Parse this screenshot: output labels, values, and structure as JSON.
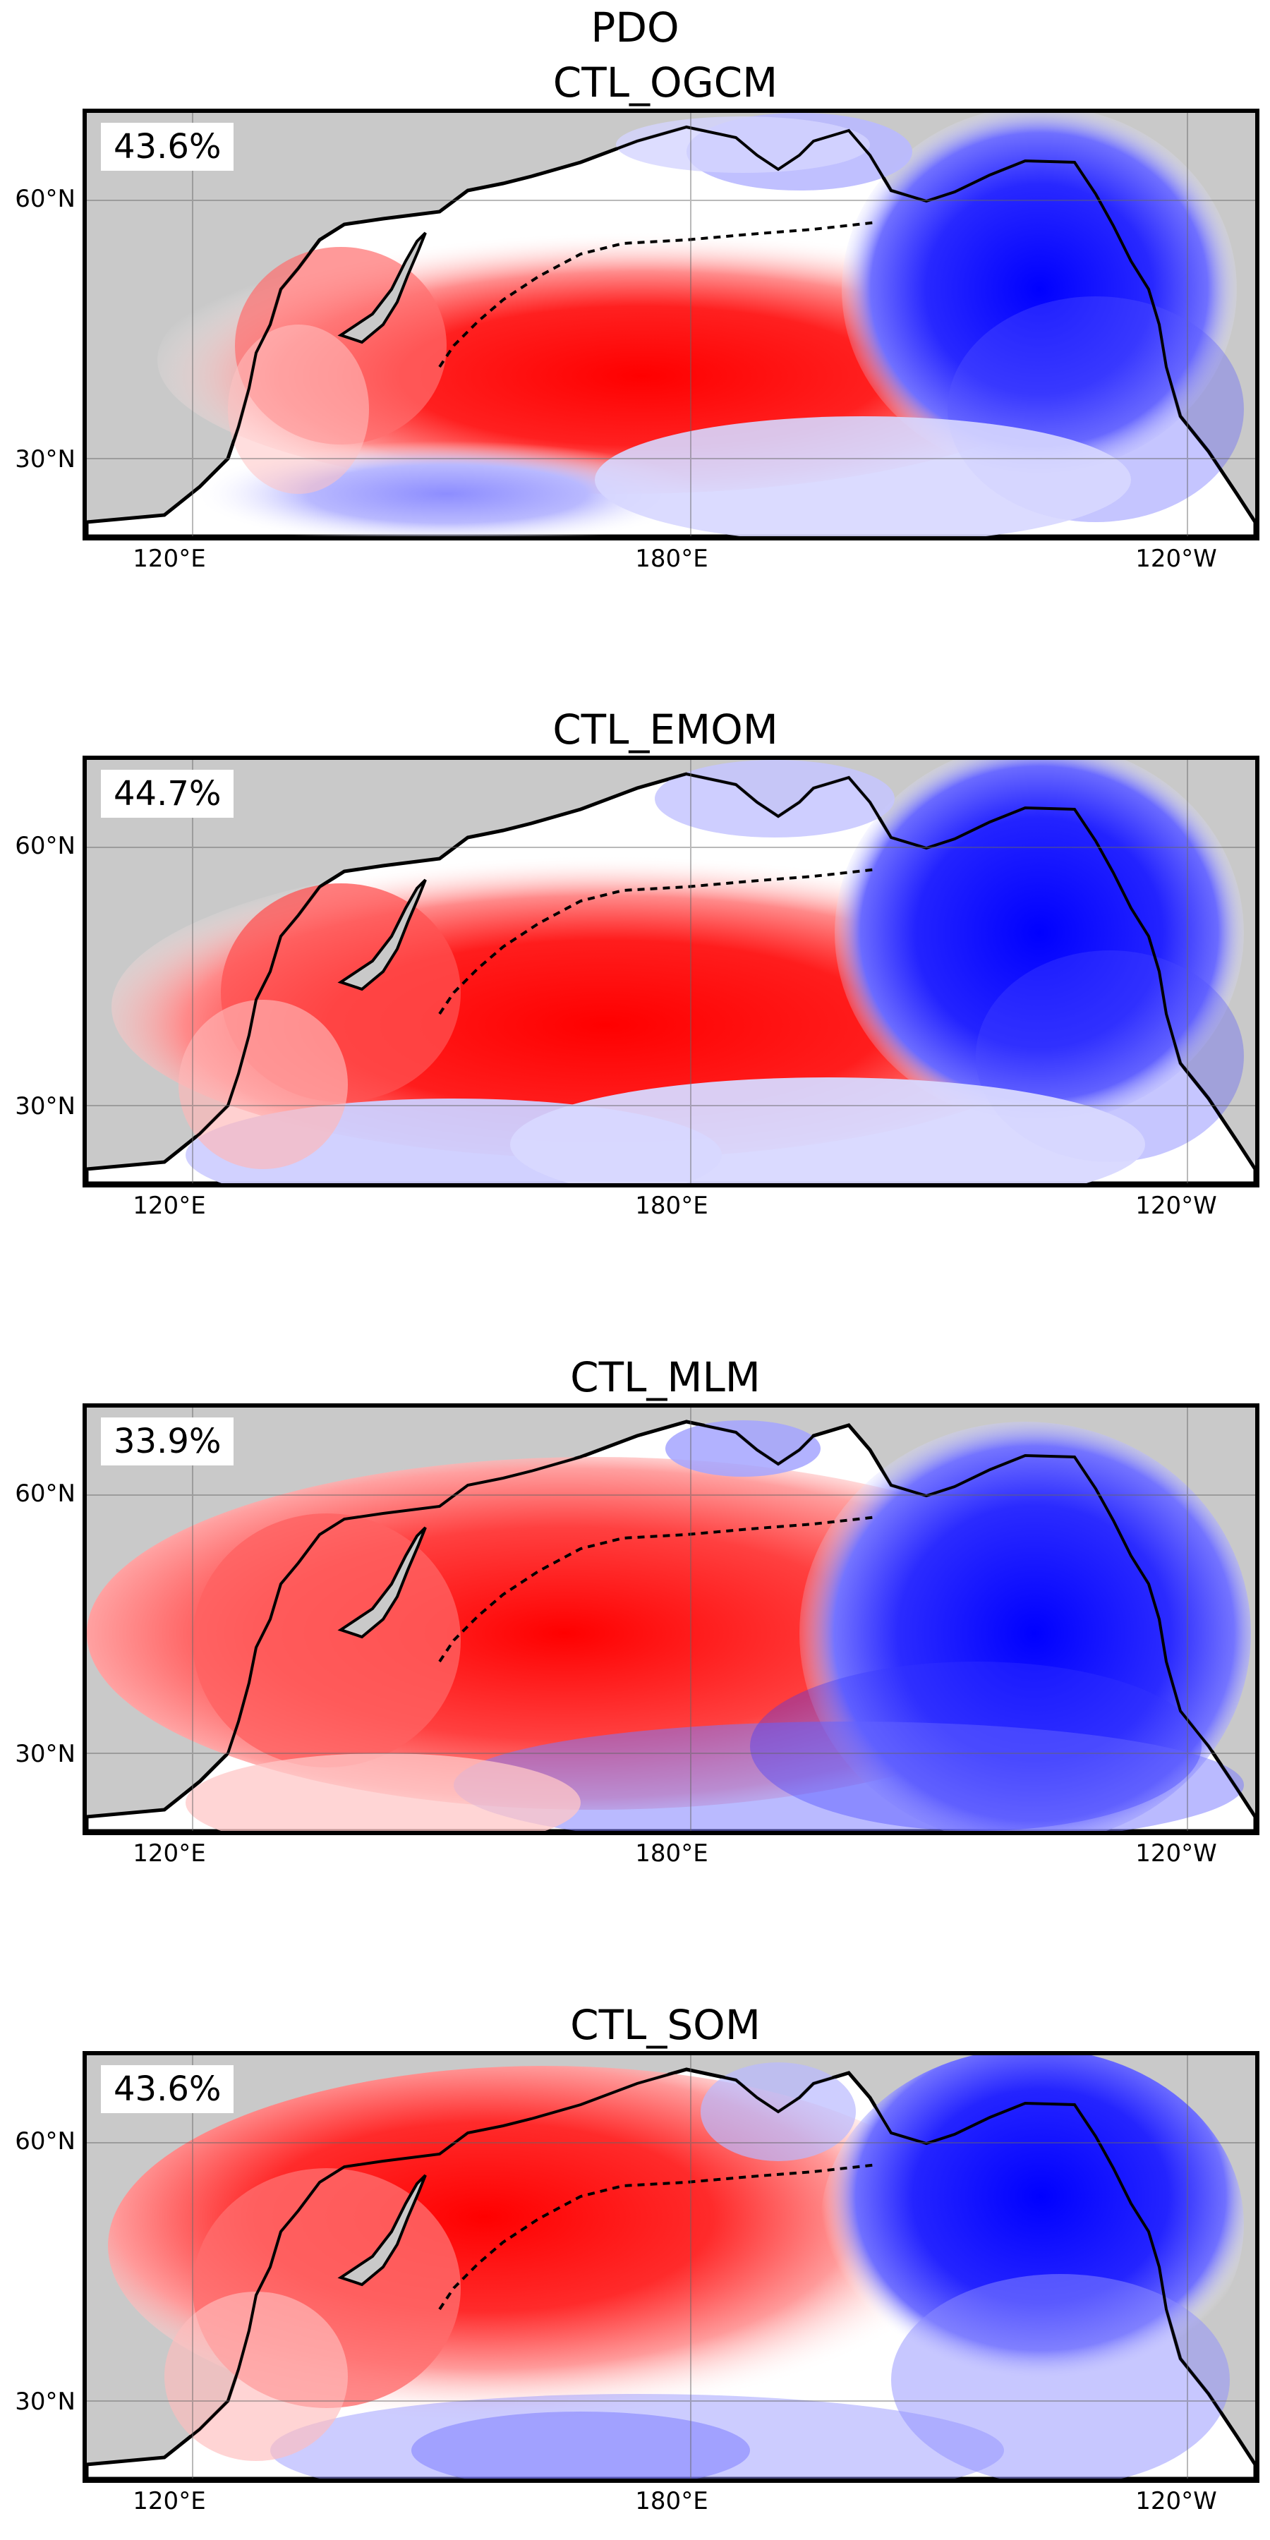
{
  "title": "PDO",
  "panels": [
    {
      "title": "CTL_OGCM",
      "percent": "43.6%",
      "pattern": "ogcm"
    },
    {
      "title": "CTL_EMOM",
      "percent": "44.7%",
      "pattern": "emom"
    },
    {
      "title": "CTL_MLM",
      "percent": "33.9%",
      "pattern": "mlm"
    },
    {
      "title": "CTL_SOM",
      "percent": "43.6%",
      "pattern": "som"
    }
  ],
  "axes": {
    "lat_labels": [
      "60°N",
      "30°N"
    ],
    "lon_labels": [
      "120°E",
      "180°E",
      "120°W"
    ]
  },
  "colors": {
    "warm": "#ff0000",
    "cool": "#0000ff",
    "land": "#c9c9c9",
    "neutral": "#ffffff"
  }
}
